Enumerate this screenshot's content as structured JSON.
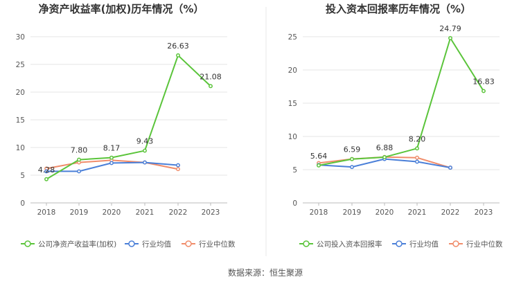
{
  "colors": {
    "company": "#5ac43a",
    "industry_avg": "#4a7fd8",
    "industry_median": "#f08c6a",
    "grid": "#e6e6e6",
    "axis": "#bbbbbb",
    "divider": "#e8e8e8"
  },
  "source_text": "数据来源：恒生聚源",
  "chart_data": [
    {
      "type": "line",
      "title": "净资产收益率(加权)历年情况（%）",
      "x": [
        "2018",
        "2019",
        "2020",
        "2021",
        "2022",
        "2023"
      ],
      "ylim": [
        0,
        30
      ],
      "yticks": [
        "0",
        "5",
        "10",
        "15",
        "20",
        "25",
        "30"
      ],
      "grid": true,
      "legend_position": "bottom",
      "series": [
        {
          "name": "公司净资产收益率(加权)",
          "color_key": "company",
          "values": [
            4.28,
            7.8,
            8.17,
            9.43,
            26.63,
            21.08
          ],
          "labels": [
            "4.28",
            "7.80",
            "8.17",
            "9.43",
            "26.63",
            "21.08"
          ]
        },
        {
          "name": "行业均值",
          "color_key": "industry_avg",
          "values": [
            5.7,
            5.7,
            7.2,
            7.3,
            6.8,
            null
          ]
        },
        {
          "name": "行业中位数",
          "color_key": "industry_median",
          "values": [
            6.2,
            7.3,
            7.7,
            7.3,
            6.1,
            null
          ]
        }
      ]
    },
    {
      "type": "line",
      "title": "投入资本回报率历年情况（%）",
      "x": [
        "2018",
        "2019",
        "2020",
        "2021",
        "2022",
        "2023"
      ],
      "ylim": [
        0,
        25
      ],
      "yticks": [
        "0",
        "5",
        "10",
        "15",
        "20",
        "25"
      ],
      "grid": true,
      "legend_position": "bottom",
      "series": [
        {
          "name": "公司投入资本回报率",
          "color_key": "company",
          "values": [
            5.64,
            6.59,
            6.88,
            8.2,
            24.79,
            16.83
          ],
          "labels": [
            "5.64",
            "6.59",
            "6.88",
            "8.20",
            "24.79",
            "16.83"
          ]
        },
        {
          "name": "行业均值",
          "color_key": "industry_avg",
          "values": [
            5.7,
            5.4,
            6.6,
            6.2,
            5.3,
            null
          ]
        },
        {
          "name": "行业中位数",
          "color_key": "industry_median",
          "values": [
            6.0,
            6.6,
            6.9,
            6.8,
            5.3,
            null
          ]
        }
      ]
    }
  ]
}
